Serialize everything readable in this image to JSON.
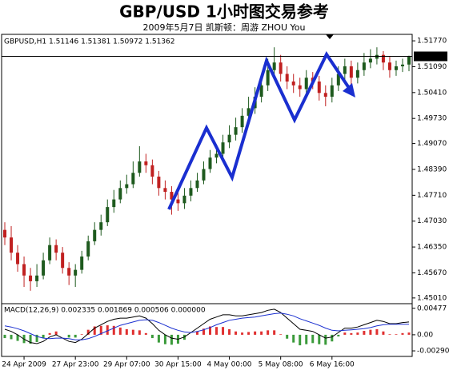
{
  "chart_data": [
    {
      "type": "candlestick",
      "title": "GBP/USD  1小时图交易参考",
      "subtitle": "2009年5月7日   凯斯顿：周游 ZHOU You",
      "label": "GBPUSD,H1  1.51146 1.51381 1.50972 1.51362",
      "categories": [
        null,
        null,
        null,
        "24 Apr 2009",
        null,
        null,
        null,
        null,
        null,
        null,
        null,
        "27 Apr 23:00",
        null,
        null,
        null,
        null,
        null,
        null,
        null,
        "29 Apr 07:00",
        null,
        null,
        null,
        null,
        null,
        null,
        null,
        "30 Apr 15:00",
        null,
        null,
        null,
        null,
        null,
        null,
        null,
        "4 May 00:00",
        null,
        null,
        null,
        null,
        null,
        null,
        null,
        "5 May 08:00",
        null,
        null,
        null,
        null,
        null,
        null,
        null,
        "6 May 16:00",
        null,
        null,
        null,
        null,
        null,
        null,
        null,
        null,
        null,
        null,
        null,
        null
      ],
      "open": [
        1.468,
        1.466,
        1.462,
        1.459,
        1.456,
        1.4545,
        1.456,
        1.46,
        1.464,
        1.462,
        1.458,
        1.456,
        1.4575,
        1.461,
        1.465,
        1.468,
        1.47,
        1.474,
        1.476,
        1.479,
        1.48,
        1.483,
        1.486,
        1.485,
        1.482,
        1.479,
        1.478,
        1.476,
        1.475,
        1.477,
        1.479,
        1.481,
        1.484,
        1.487,
        1.488,
        1.491,
        1.493,
        1.495,
        1.498,
        1.5,
        1.503,
        1.506,
        1.51,
        1.512,
        1.509,
        1.507,
        1.506,
        1.505,
        1.508,
        1.507,
        1.504,
        1.503,
        1.506,
        1.509,
        1.511,
        1.508,
        1.51,
        1.512,
        1.513,
        1.514,
        1.512,
        1.51,
        1.511,
        1.51146
      ],
      "high": [
        1.47,
        1.469,
        1.464,
        1.461,
        1.458,
        1.459,
        1.462,
        1.466,
        1.4655,
        1.4635,
        1.4595,
        1.459,
        1.4625,
        1.4665,
        1.47,
        1.472,
        1.476,
        1.4785,
        1.481,
        1.4825,
        1.486,
        1.49,
        1.488,
        1.4865,
        1.4835,
        1.481,
        1.4795,
        1.478,
        1.479,
        1.481,
        1.483,
        1.486,
        1.489,
        1.4905,
        1.493,
        1.4955,
        1.4975,
        1.5,
        1.503,
        1.5055,
        1.5085,
        1.513,
        1.516,
        1.514,
        1.511,
        1.509,
        1.508,
        1.51,
        1.5095,
        1.5085,
        1.506,
        1.508,
        1.511,
        1.513,
        1.5125,
        1.512,
        1.5145,
        1.5155,
        1.516,
        1.515,
        1.5135,
        1.5125,
        1.513,
        1.51381
      ],
      "low": [
        1.464,
        1.46,
        1.457,
        1.453,
        1.452,
        1.453,
        1.455,
        1.459,
        1.46,
        1.4565,
        1.4535,
        1.453,
        1.4565,
        1.46,
        1.464,
        1.4665,
        1.469,
        1.4725,
        1.475,
        1.4775,
        1.479,
        1.482,
        1.483,
        1.48,
        1.477,
        1.476,
        1.472,
        1.473,
        1.4735,
        1.4755,
        1.478,
        1.48,
        1.483,
        1.4855,
        1.4865,
        1.4895,
        1.4915,
        1.4935,
        1.4965,
        1.4985,
        1.5015,
        1.5045,
        1.5085,
        1.507,
        1.505,
        1.504,
        1.503,
        1.5035,
        1.505,
        1.502,
        1.5005,
        1.5015,
        1.5045,
        1.5075,
        1.506,
        1.5065,
        1.5085,
        1.5105,
        1.5115,
        1.51,
        1.508,
        1.5085,
        1.5095,
        1.50972
      ],
      "close": [
        1.466,
        1.462,
        1.459,
        1.456,
        1.4545,
        1.456,
        1.46,
        1.464,
        1.462,
        1.458,
        1.456,
        1.4575,
        1.461,
        1.465,
        1.468,
        1.47,
        1.474,
        1.476,
        1.479,
        1.48,
        1.483,
        1.486,
        1.485,
        1.482,
        1.479,
        1.478,
        1.476,
        1.475,
        1.477,
        1.479,
        1.481,
        1.484,
        1.487,
        1.488,
        1.491,
        1.493,
        1.495,
        1.498,
        1.5,
        1.503,
        1.506,
        1.51,
        1.512,
        1.509,
        1.507,
        1.506,
        1.505,
        1.508,
        1.507,
        1.504,
        1.503,
        1.506,
        1.509,
        1.511,
        1.508,
        1.51,
        1.512,
        1.513,
        1.514,
        1.512,
        1.51,
        1.511,
        1.51146,
        1.51362
      ],
      "up_color": "#1e5a1e",
      "down_color": "#c02020",
      "ylim": [
        1.4486,
        1.5194
      ],
      "yticks": [
        {
          "value": 1.5177,
          "label": "1.51770"
        },
        {
          "value": 1.5109,
          "label": "1.51090"
        },
        {
          "value": 1.5041,
          "label": "1.50410"
        },
        {
          "value": 1.4973,
          "label": "1.49730"
        },
        {
          "value": 1.4907,
          "label": "1.49070"
        },
        {
          "value": 1.4839,
          "label": "1.48390"
        },
        {
          "value": 1.4771,
          "label": "1.47710"
        },
        {
          "value": 1.4703,
          "label": "1.47030"
        },
        {
          "value": 1.4635,
          "label": "1.46350"
        },
        {
          "value": 1.4567,
          "label": "1.45670"
        },
        {
          "value": 1.4501,
          "label": "1.45010"
        }
      ],
      "grid": false
    },
    {
      "type": "macd",
      "label": "MACD(12,26,9) 0.002335 0.001869 0.000506 0.000000",
      "values": [
        -0.0006,
        -0.0008,
        -0.0011,
        -0.0015,
        -0.0016,
        -0.0013,
        -0.0006,
        0.0003,
        0.0006,
        0.0,
        -0.0005,
        -0.0005,
        0.0001,
        0.0009,
        0.0015,
        0.0016,
        0.0017,
        0.0016,
        0.0013,
        0.001,
        0.0009,
        0.0008,
        0.0003,
        -0.0006,
        -0.0014,
        -0.0017,
        -0.0018,
        -0.0016,
        -0.0009,
        0.0,
        0.0006,
        0.0011,
        0.0015,
        0.0014,
        0.0014,
        0.001,
        0.0006,
        0.0004,
        0.0005,
        0.0006,
        0.0006,
        0.0008,
        0.0008,
        0.0001,
        -0.0007,
        -0.0014,
        -0.0019,
        -0.0017,
        -0.0015,
        -0.0017,
        -0.0018,
        -0.0012,
        -0.0003,
        0.0004,
        0.0003,
        0.0004,
        0.0007,
        0.0009,
        0.001,
        0.0006,
        0.0001,
        0.0001,
        0.0003,
        0.0004
      ],
      "positive_color": "#e03030",
      "negative_color": "#3a9a3a",
      "series": [
        {
          "color": "#000000",
          "values": [
            0.001,
            0.0006,
            0.0,
            -0.0008,
            -0.0014,
            -0.0016,
            -0.0012,
            -0.0004,
            0.0,
            -0.0006,
            -0.0012,
            -0.0014,
            -0.0008,
            0.0002,
            0.0012,
            0.0018,
            0.0024,
            0.0028,
            0.003,
            0.003,
            0.0032,
            0.0034,
            0.003,
            0.002,
            0.0008,
            0.0,
            -0.0006,
            -0.0008,
            -0.0004,
            0.0004,
            0.0012,
            0.002,
            0.0028,
            0.0032,
            0.0036,
            0.0036,
            0.0034,
            0.0034,
            0.0036,
            0.0038,
            0.004,
            0.0044,
            0.0046,
            0.004,
            0.003,
            0.002,
            0.001,
            0.0008,
            0.0006,
            0.0,
            -0.0006,
            -0.0004,
            0.0004,
            0.0012,
            0.0012,
            0.0014,
            0.0018,
            0.0022,
            0.0026,
            0.0024,
            0.002,
            0.002,
            0.0022,
            0.0023
          ]
        },
        {
          "color": "#1a2fd0",
          "values": [
            0.0016,
            0.0014,
            0.0011,
            0.0007,
            0.0002,
            -0.0003,
            -0.0006,
            -0.0007,
            -0.0006,
            -0.0006,
            -0.0007,
            -0.0009,
            -0.0009,
            -0.0007,
            -0.0003,
            0.0002,
            0.0007,
            0.0012,
            0.0017,
            0.002,
            0.0023,
            0.0026,
            0.0027,
            0.0026,
            0.0022,
            0.0017,
            0.0012,
            0.0008,
            0.0005,
            0.0004,
            0.0006,
            0.0009,
            0.0013,
            0.0018,
            0.0022,
            0.0026,
            0.0028,
            0.003,
            0.0031,
            0.0032,
            0.0034,
            0.0036,
            0.0038,
            0.0039,
            0.0037,
            0.0034,
            0.0029,
            0.0025,
            0.0021,
            0.0017,
            0.0012,
            0.0008,
            0.0007,
            0.0008,
            0.0009,
            0.001,
            0.0011,
            0.0013,
            0.0016,
            0.0018,
            0.0019,
            0.0019,
            0.0019,
            0.0019
          ]
        }
      ],
      "ylim": [
        -0.0039,
        0.0056
      ],
      "yticks": [
        0.00477,
        {
          "value": 0,
          "label": "0.00"
        },
        {
          "value": -0.0029,
          "label": "-0.00290"
        }
      ]
    }
  ]
}
